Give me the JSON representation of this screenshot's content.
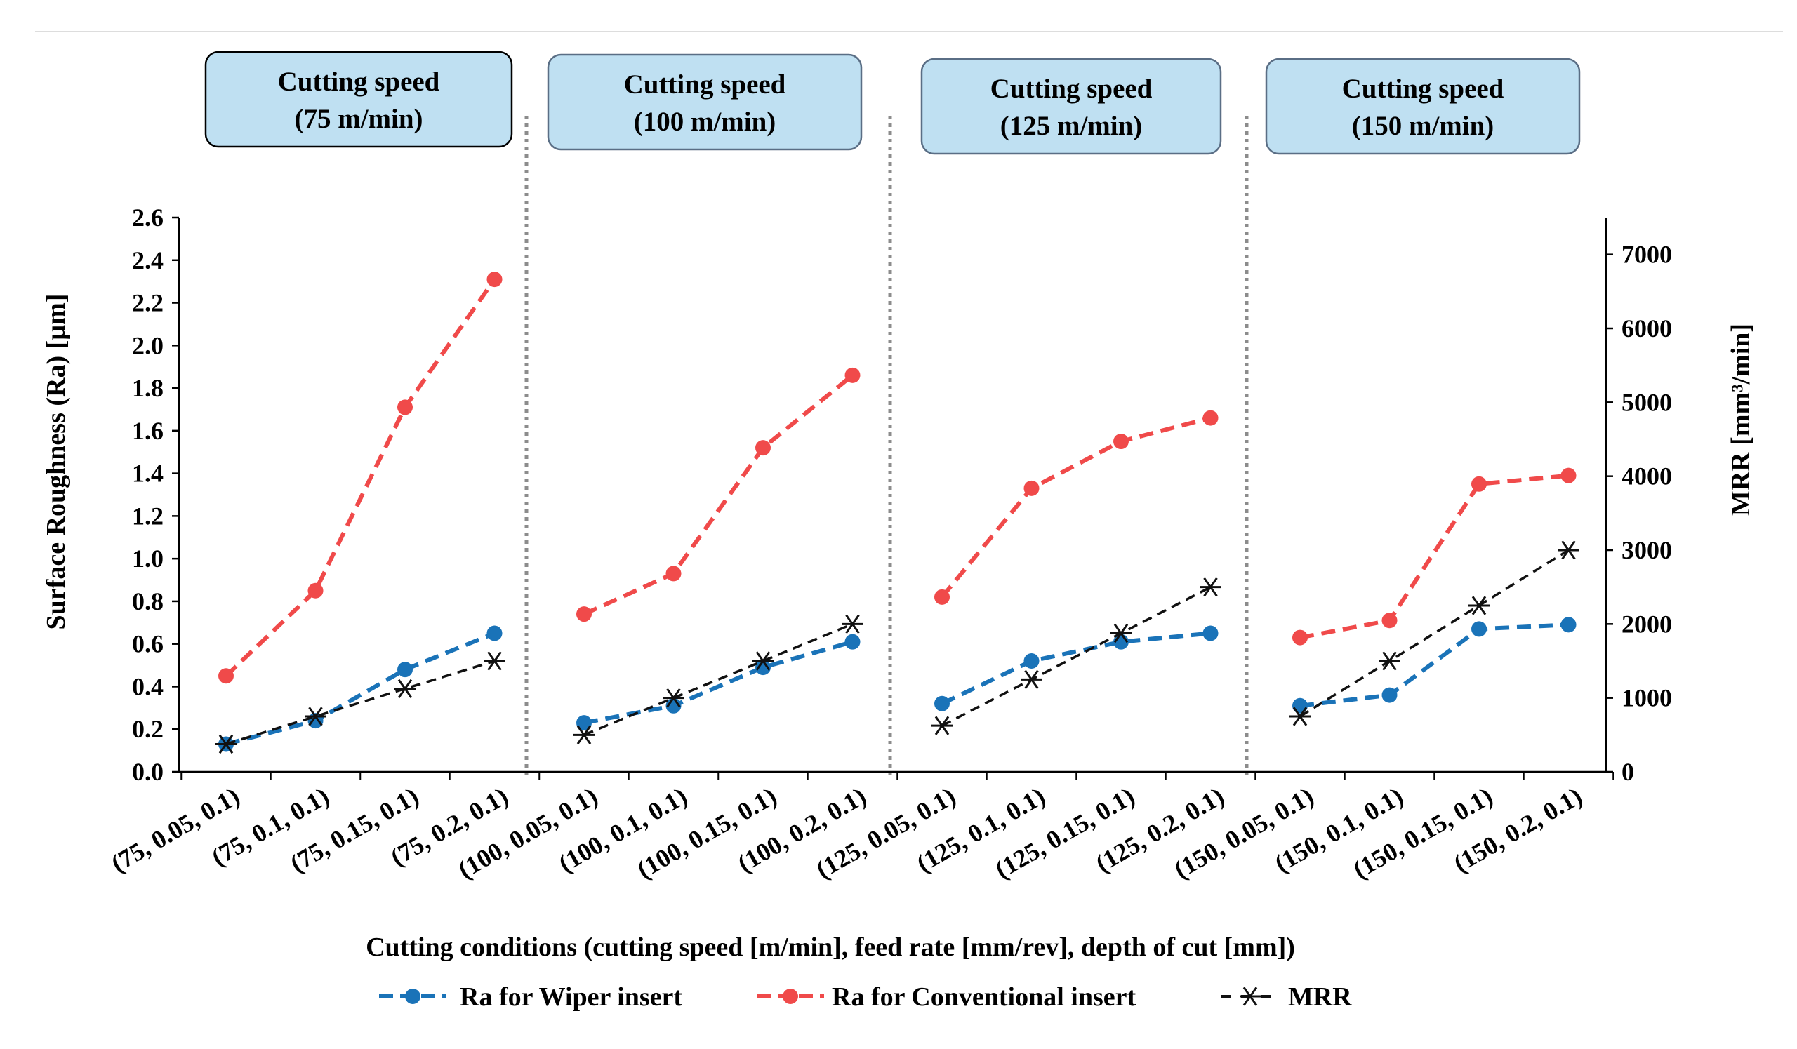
{
  "chart_data": {
    "type": "line",
    "categories": [
      "(75, 0.05, 0.1)",
      "(75, 0.1, 0.1)",
      "(75, 0.15, 0.1)",
      "(75, 0.2, 0.1)",
      "(100, 0.05, 0.1)",
      "(100, 0.1, 0.1)",
      "(100, 0.15, 0.1)",
      "(100, 0.2, 0.1)",
      "(125, 0.05, 0.1)",
      "(125, 0.1, 0.1)",
      "(125, 0.15, 0.1)",
      "(125, 0.2, 0.1)",
      "(150, 0.05, 0.1)",
      "(150, 0.1, 0.1)",
      "(150, 0.15, 0.1)",
      "(150, 0.2, 0.1)"
    ],
    "series": [
      {
        "name": "Ra for Wiper insert",
        "axis": "left",
        "color": "#1a73b8",
        "values": [
          0.13,
          0.24,
          0.48,
          0.65,
          0.23,
          0.31,
          0.49,
          0.61,
          0.32,
          0.52,
          0.61,
          0.65,
          0.31,
          0.36,
          0.67,
          0.69
        ]
      },
      {
        "name": "Ra for Conventional insert",
        "axis": "left",
        "color": "#f04a4a",
        "values": [
          0.45,
          0.85,
          1.71,
          2.31,
          0.74,
          0.93,
          1.52,
          1.86,
          0.82,
          1.33,
          1.55,
          1.66,
          0.63,
          0.71,
          1.35,
          1.39
        ]
      },
      {
        "name": "MRR",
        "axis": "right",
        "color": "#111111",
        "values": [
          375,
          750,
          1125,
          1500,
          500,
          1000,
          1500,
          2000,
          625,
          1250,
          1875,
          2500,
          750,
          1500,
          2250,
          3000
        ]
      }
    ],
    "xlabel": "Cutting conditions (cutting speed [m/min], feed rate [mm/rev], depth of cut [mm])",
    "ylabel": "Surface Roughness (Ra) [µm]",
    "y2label": "MRR [mm³/min]",
    "ylim": [
      0,
      2.6
    ],
    "y2lim": [
      0,
      7500
    ],
    "yticks": [
      "0.0",
      "0.2",
      "0.4",
      "0.6",
      "0.8",
      "1.0",
      "1.2",
      "1.4",
      "1.6",
      "1.8",
      "2.0",
      "2.2",
      "2.4",
      "2.6"
    ],
    "y2ticks": [
      "0",
      "1000",
      "2000",
      "3000",
      "4000",
      "5000",
      "6000",
      "7000"
    ],
    "groups": [
      {
        "line1": "Cutting speed",
        "line2": "(75 m/min)"
      },
      {
        "line1": "Cutting speed",
        "line2": "(100 m/min)"
      },
      {
        "line1": "Cutting speed",
        "line2": "(125 m/min)"
      },
      {
        "line1": "Cutting speed",
        "line2": "(150 m/min)"
      }
    ],
    "legend": [
      "Ra for Wiper insert",
      "Ra for Conventional insert",
      "MRR"
    ],
    "legend_position": "bottom"
  }
}
